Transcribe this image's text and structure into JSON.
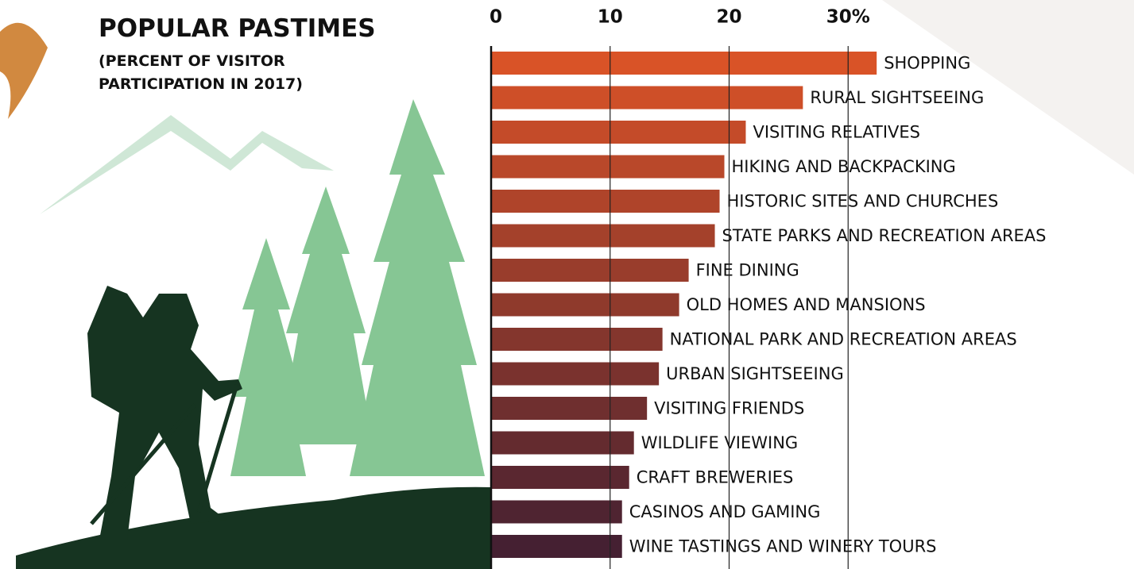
{
  "chart_data": {
    "type": "hbar",
    "title": "POPULAR PASTIMES",
    "subtitle": "(PERCENT OF VISITOR PARTICIPATION IN 2017)",
    "categories": [
      "SHOPPING",
      "RURAL SIGHTSEEING",
      "VISITING RELATIVES",
      "HIKING AND BACKPACKING",
      "HISTORIC SITES AND CHURCHES",
      "STATE PARKS AND RECREATION AREAS",
      "FINE DINING",
      "OLD HOMES AND MANSIONS",
      "NATIONAL PARK AND RECREATION AREAS",
      "URBAN SIGHTSEEING",
      "VISITING FRIENDS",
      "WILDLIFE VIEWING",
      "CRAFT BREWERIES",
      "CASINOS AND GAMING",
      "WINE TASTINGS AND WINERY TOURS"
    ],
    "values": [
      32.4,
      26.2,
      21.4,
      19.6,
      19.2,
      18.8,
      16.6,
      15.8,
      14.4,
      14.1,
      13.1,
      12.0,
      11.6,
      11.0,
      11.0
    ],
    "colors": [
      "#d95327",
      "#ce4f28",
      "#c44b29",
      "#b9482a",
      "#af442a",
      "#a4412b",
      "#993d2c",
      "#8f3a2c",
      "#84362d",
      "#7a322e",
      "#6f2f2f",
      "#642b2f",
      "#5a2730",
      "#4f2431",
      "#452032"
    ],
    "xlim": [
      0,
      40
    ],
    "xticks": [
      0,
      10,
      20,
      {
        "value": 30,
        "label": "30%"
      }
    ],
    "grid": true
  }
}
